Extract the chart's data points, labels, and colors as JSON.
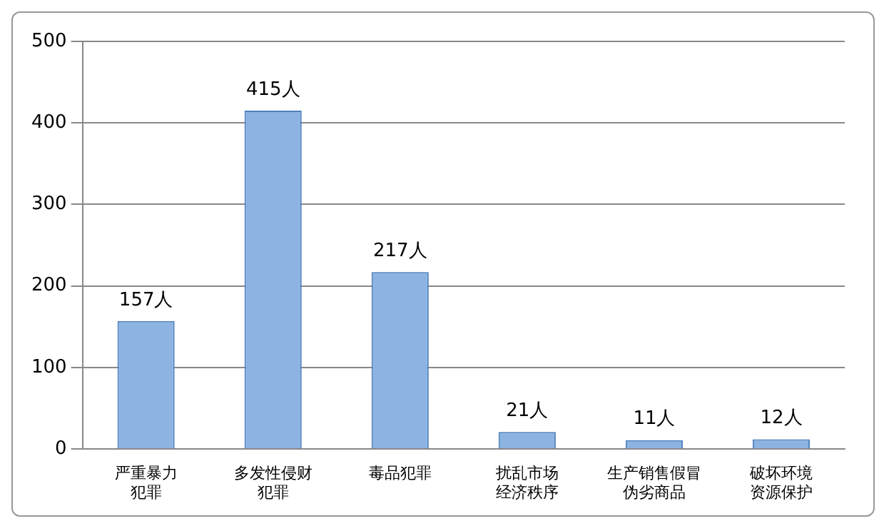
{
  "chart_data": {
    "type": "bar",
    "categories": [
      "严重暴力犯罪",
      "多发性侵财犯罪",
      "毒品犯罪",
      "扰乱市场经济秩序",
      "生产销售假冒伪劣商品",
      "破坏环境资源保护"
    ],
    "values": [
      157,
      415,
      217,
      21,
      11,
      12
    ],
    "value_labels": [
      "157人",
      "415人",
      "217人",
      "21人",
      "11人",
      "12人"
    ],
    "color": "#8db3e2",
    "ylim": [
      0,
      500
    ],
    "yticks": [
      0,
      100,
      200,
      300,
      400,
      500
    ],
    "grid": "y",
    "legend": false
  }
}
